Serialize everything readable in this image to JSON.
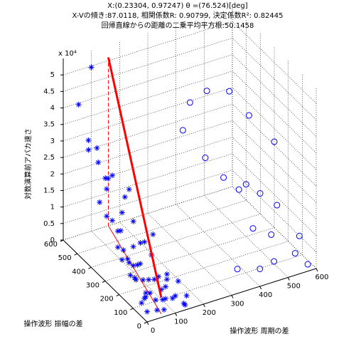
{
  "chart_data": {
    "type": "scatter3d",
    "title": [
      "X:(0.23304, 0.97247)  θ =(76.524)[deg]",
      "X-Vの傾き:87.0118, 相関係数R: 0.90799, 決定係数R²: 0.82445",
      "回帰直線からの距離の二乗平均平方根:50.1458"
    ],
    "xlabel": "操作波形 周期の差",
    "ylabel": "操作波形 振幅の差",
    "zlabel": "対数演算前アパカ速さ",
    "zexponent": "x 10⁴",
    "xlim": [
      0,
      600
    ],
    "ylim": [
      0,
      600
    ],
    "zlim": [
      0,
      5.5
    ],
    "xticks": [
      0,
      100,
      200,
      300,
      400,
      500,
      600
    ],
    "yticks": [
      0,
      100,
      200,
      300,
      400,
      500,
      600
    ],
    "zticks": [
      0,
      0.5,
      1,
      1.5,
      2,
      2.5,
      3,
      3.5,
      4,
      4.5,
      5
    ],
    "grid": true,
    "series": [
      {
        "marker": "star",
        "color": "#0000ff",
        "x": [
          10,
          20,
          30,
          15,
          40,
          50,
          25,
          60,
          35,
          45,
          70,
          80,
          20,
          55,
          65,
          90,
          30,
          40,
          100,
          75,
          85,
          50,
          60,
          110,
          120,
          95,
          40,
          130,
          70,
          80,
          140,
          55,
          65,
          150,
          45,
          100,
          115,
          35,
          25,
          60,
          90,
          105,
          125,
          85,
          75,
          50,
          30,
          20,
          10,
          40,
          140,
          160,
          70,
          60,
          95,
          110,
          5,
          15,
          80,
          120
        ],
        "y": [
          20,
          50,
          80,
          120,
          150,
          180,
          220,
          250,
          280,
          300,
          320,
          350,
          380,
          400,
          430,
          460,
          200,
          260,
          100,
          140,
          60,
          30,
          170,
          90,
          40,
          210,
          330,
          120,
          240,
          290,
          20,
          360,
          70,
          80,
          190,
          150,
          50,
          420,
          470,
          520,
          230,
          180,
          110,
          270,
          310,
          130,
          350,
          160,
          60,
          90,
          10,
          40,
          20,
          100,
          60,
          140,
          500,
          450,
          520,
          200
        ],
        "z": [
          0.2,
          0.5,
          0.3,
          0.8,
          1.0,
          0.4,
          1.2,
          0.6,
          1.5,
          0.9,
          1.8,
          1.1,
          2.0,
          1.4,
          2.4,
          2.2,
          1.0,
          0.7,
          0.3,
          0.5,
          0.2,
          0.1,
          0.9,
          0.4,
          0.3,
          1.3,
          1.6,
          0.6,
          1.1,
          2.6,
          0.1,
          2.8,
          0.2,
          0.5,
          0.8,
          0.4,
          0.2,
          3.0,
          3.2,
          5.4,
          1.2,
          1.0,
          0.5,
          1.7,
          2.3,
          0.6,
          2.5,
          0.7,
          0.3,
          0.4,
          0.1,
          0.2,
          0.1,
          0.3,
          0.2,
          0.5,
          4.5,
          3.6,
          2.9,
          1.5
        ]
      },
      {
        "marker": "circle",
        "color": "#0000ff",
        "x": [
          350,
          400,
          450,
          500,
          550,
          600,
          380,
          420,
          480,
          520,
          560,
          450,
          500,
          590,
          360,
          430,
          470,
          540,
          580,
          410
        ],
        "y": [
          450,
          500,
          480,
          420,
          380,
          300,
          350,
          300,
          260,
          240,
          200,
          150,
          120,
          100,
          80,
          60,
          40,
          30,
          20,
          170
        ],
        "z": [
          3.0,
          3.5,
          3.8,
          3.9,
          3.2,
          2.6,
          2.5,
          2.0,
          1.8,
          1.5,
          1.2,
          1.0,
          0.8,
          0.6,
          0.3,
          0.2,
          0.4,
          0.5,
          0.1,
          2.2
        ]
      }
    ],
    "fit_line": {
      "color": "#ff0000",
      "x": [
        160,
        60
      ],
      "y": [
        600,
        20
      ],
      "z": [
        5.1,
        0.5
      ]
    }
  }
}
